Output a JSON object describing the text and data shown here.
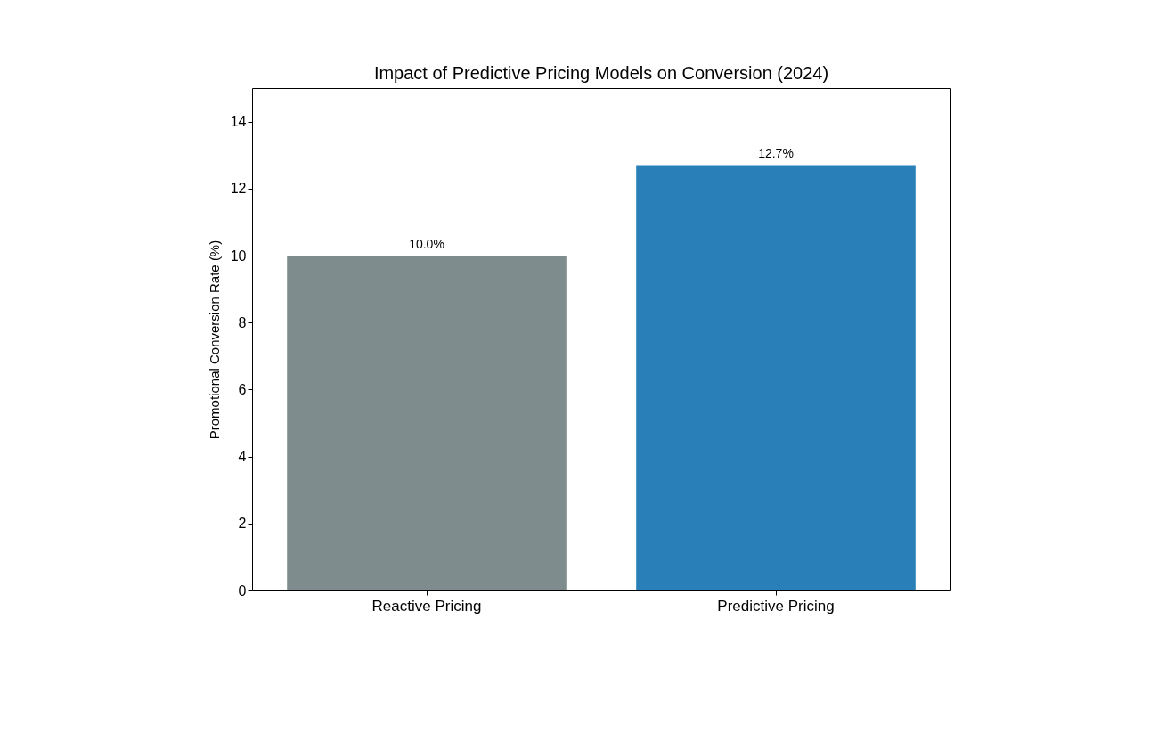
{
  "chart_data": {
    "type": "bar",
    "title": "Impact of Predictive Pricing Models on Conversion (2024)",
    "ylabel": "Promotional Conversion Rate (%)",
    "categories": [
      "Reactive Pricing",
      "Predictive Pricing"
    ],
    "values": [
      10.0,
      12.7
    ],
    "colors": [
      "#7f8c8d",
      "#2980b9"
    ],
    "value_labels": [
      "10.0%",
      "12.7%"
    ],
    "ylim": [
      0,
      15
    ],
    "yticks": [
      0,
      2,
      4,
      6,
      8,
      10,
      12,
      14
    ],
    "grid": false
  }
}
